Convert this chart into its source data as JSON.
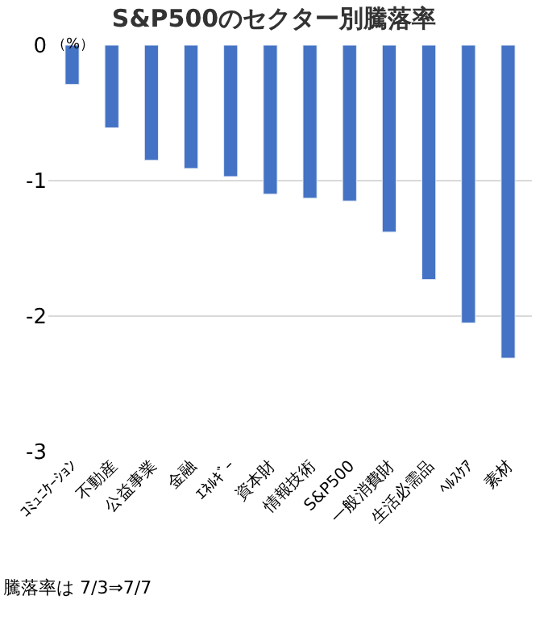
{
  "chart_data": {
    "type": "bar",
    "title": "S&P500のセクター別騰落率",
    "ylabel": "（%）",
    "categories": [
      "ｺﾐｭﾆｹｰｼｮﾝ",
      "不動産",
      "公益事業",
      "金融",
      "ｴﾈﾙｷﾞｰ",
      "資本財",
      "情報技術",
      "S&P500",
      "一般消費財",
      "生活必需品",
      "ﾍﾙｽｹｱ",
      "素材"
    ],
    "values": [
      -0.29,
      -0.61,
      -0.85,
      -0.91,
      -0.97,
      -1.1,
      -1.13,
      -1.15,
      -1.38,
      -1.73,
      -2.05,
      -2.31
    ],
    "color": "#4472c4",
    "ylim": [
      -3,
      0
    ],
    "yticks": [
      0,
      -1,
      -2,
      -3
    ],
    "grid": "y",
    "annotations": [
      "騰落率は 7/3⇒7/7"
    ]
  }
}
